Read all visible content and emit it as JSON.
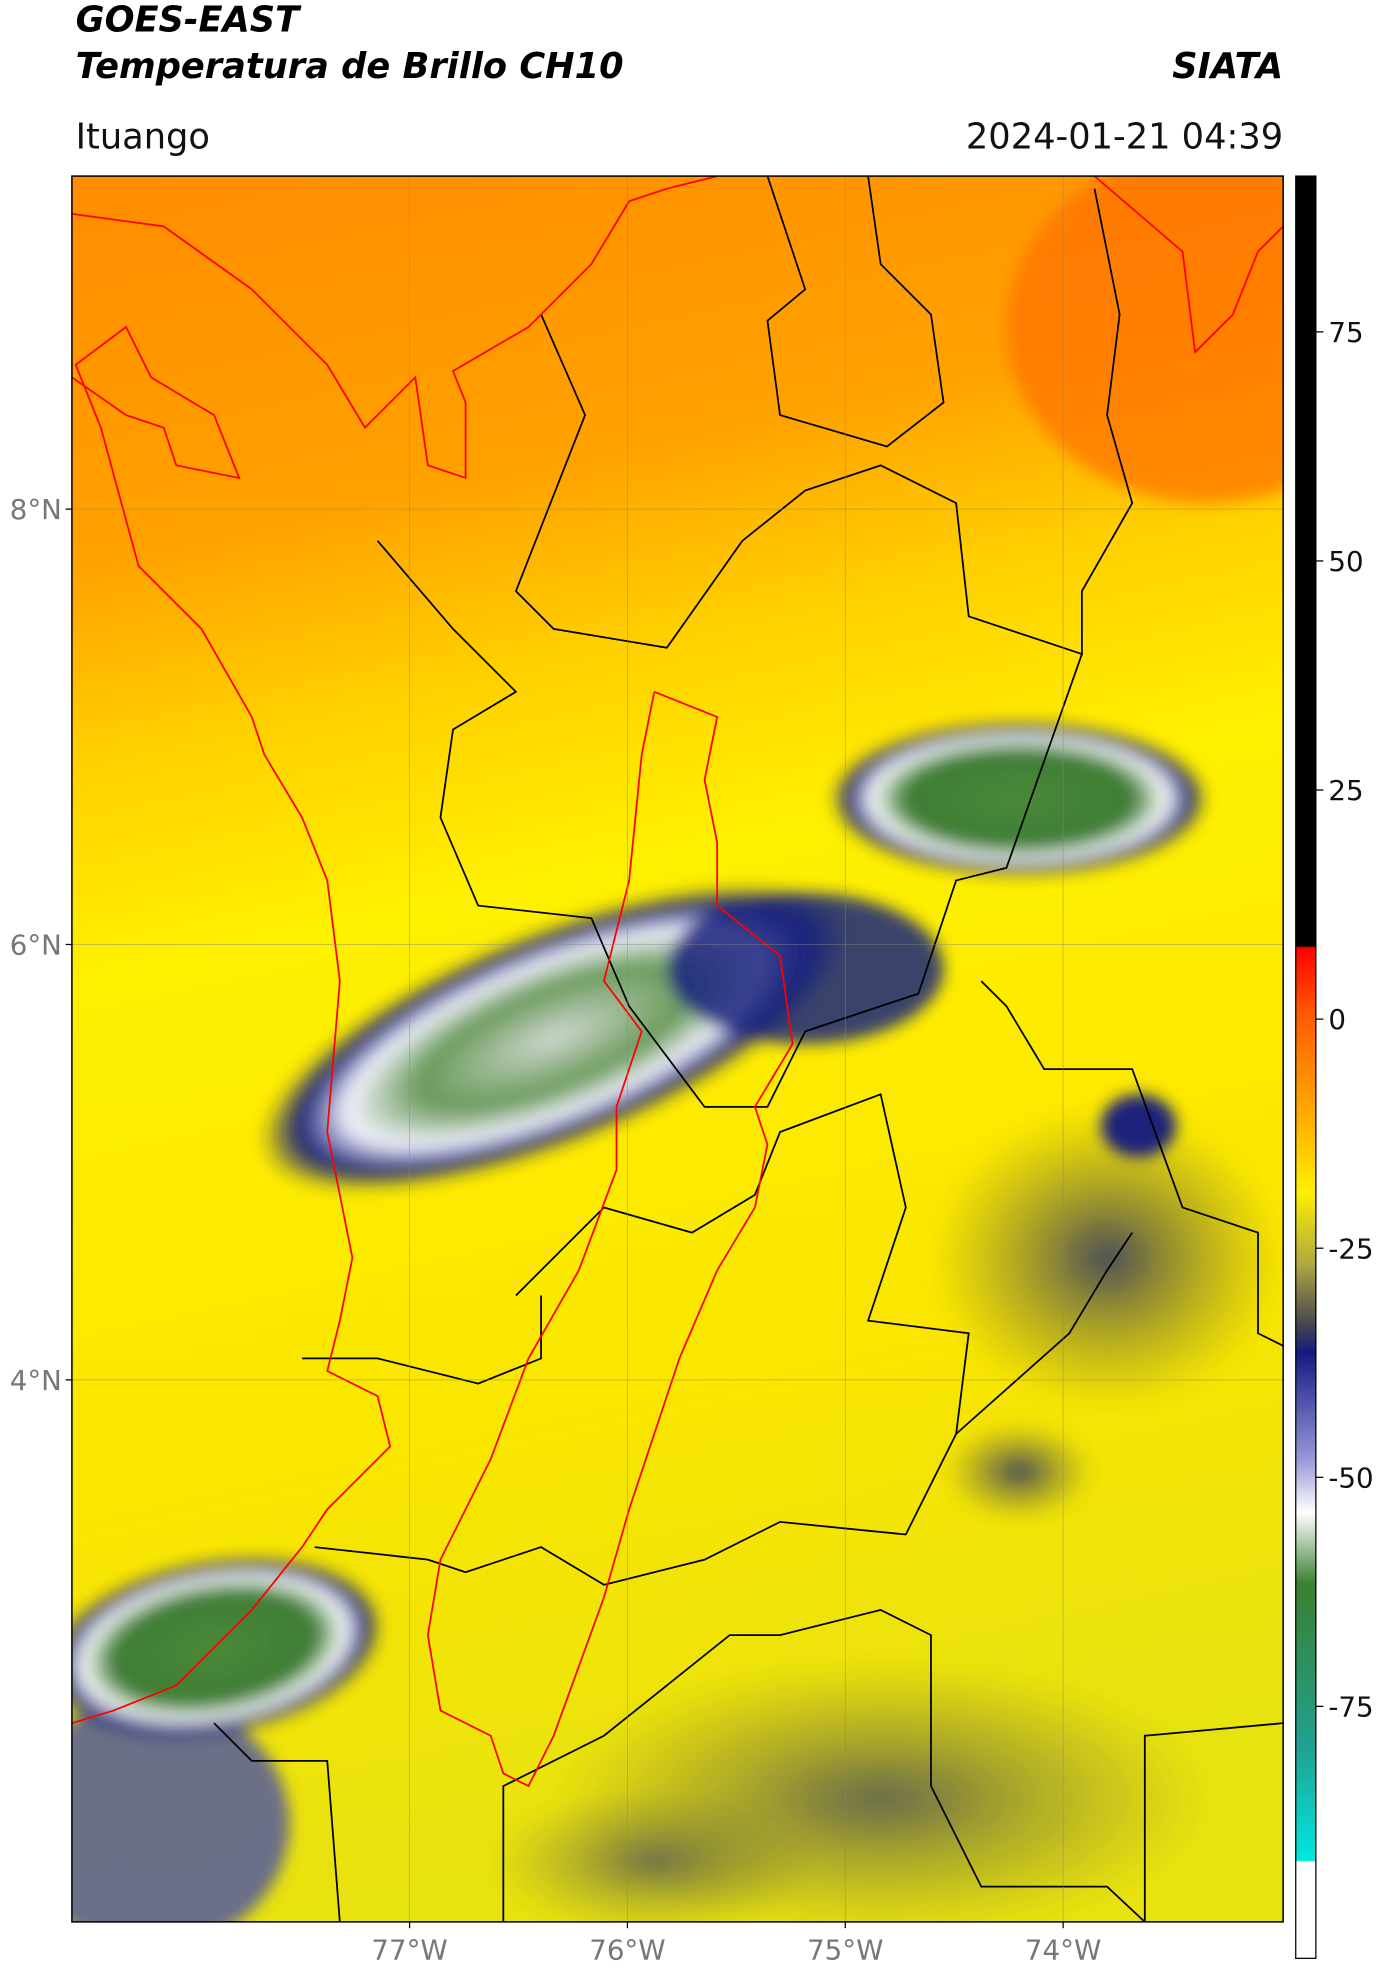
{
  "header": {
    "satellite": "GOES-EAST",
    "title": "Temperatura de Brillo CH10",
    "source": "SIATA",
    "region": "Ituango",
    "datetime": "2024-01-21 04:39"
  },
  "map": {
    "xlim": [
      -78.55,
      -72.99
    ],
    "ylim": [
      1.51,
      9.53
    ],
    "xticks": [
      {
        "value": -77,
        "label": "77°W"
      },
      {
        "value": -76,
        "label": "76°W"
      },
      {
        "value": -75,
        "label": "75°W"
      },
      {
        "value": -74,
        "label": "74°W"
      }
    ],
    "yticks": [
      {
        "value": 8,
        "label": "8°N"
      },
      {
        "value": 6,
        "label": "6°N"
      },
      {
        "value": 4,
        "label": "4°N"
      }
    ]
  },
  "colorbar": {
    "vlim": [
      -102.5,
      92
    ],
    "ticks": [
      75,
      50,
      25,
      0,
      -25,
      -50,
      -75
    ]
  }
}
